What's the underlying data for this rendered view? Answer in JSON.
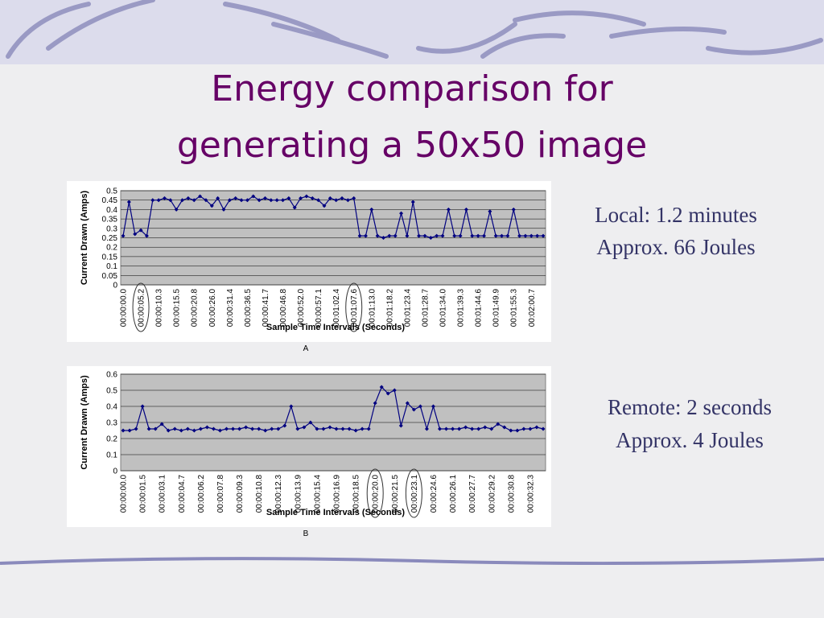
{
  "title": [
    "Energy comparison for",
    "generating a 50x50 image"
  ],
  "notes": [
    [
      "Local: 1.2 minutes",
      "Approx. 66 Joules"
    ],
    [
      "Remote: 2 seconds",
      "Approx. 4 Joules"
    ]
  ],
  "chart_data": [
    {
      "type": "line",
      "caption": "A",
      "x_label": "Sample Time Intervals (Seconds)",
      "y_label": "Current Drawn (Amps)",
      "ylim": [
        0,
        0.5
      ],
      "yticks": [
        0,
        0.05,
        0.1,
        0.15,
        0.2,
        0.25,
        0.3,
        0.35,
        0.4,
        0.45,
        0.5
      ],
      "grid": true,
      "categories": [
        "00:00:00.0",
        null,
        null,
        "00:00:05.2",
        null,
        null,
        "00:00:10.3",
        null,
        null,
        "00:00:15.5",
        null,
        null,
        "00:00:20.8",
        null,
        null,
        "00:00:26.0",
        null,
        null,
        "00:00:31.4",
        null,
        null,
        "00:00:36.5",
        null,
        null,
        "00:00:41.7",
        null,
        null,
        "00:00:46.8",
        null,
        null,
        "00:00:52.0",
        null,
        null,
        "00:00:57.1",
        null,
        null,
        "00:01:02.4",
        null,
        null,
        "00:01:07.6",
        null,
        null,
        "00:01:13.0",
        null,
        null,
        "00:01:18.2",
        null,
        null,
        "00:01:23.4",
        null,
        null,
        "00:01:28.7",
        null,
        null,
        "00:01:34.0",
        null,
        null,
        "00:01:39.3",
        null,
        null,
        "00:01:44.6",
        null,
        null,
        "00:01:49.9",
        null,
        null,
        "00:01:55.3",
        null,
        null,
        "00:02:00.7",
        null,
        null
      ],
      "series": [
        {
          "color": "#000080",
          "values": [
            0.26,
            0.44,
            0.27,
            0.29,
            0.26,
            0.45,
            0.45,
            0.46,
            0.45,
            0.4,
            0.45,
            0.46,
            0.45,
            0.47,
            0.45,
            0.42,
            0.46,
            0.4,
            0.45,
            0.46,
            0.45,
            0.45,
            0.47,
            0.45,
            0.46,
            0.45,
            0.45,
            0.45,
            0.46,
            0.41,
            0.46,
            0.47,
            0.46,
            0.45,
            0.42,
            0.46,
            0.45,
            0.46,
            0.45,
            0.46,
            0.26,
            0.26,
            0.4,
            0.26,
            0.25,
            0.26,
            0.26,
            0.38,
            0.26,
            0.44,
            0.26,
            0.26,
            0.25,
            0.26,
            0.26,
            0.4,
            0.26,
            0.26,
            0.4,
            0.26,
            0.26,
            0.26,
            0.39,
            0.26,
            0.26,
            0.26,
            0.4,
            0.26,
            0.26,
            0.26,
            0.26,
            0.26
          ]
        }
      ]
    },
    {
      "type": "line",
      "caption": "B",
      "x_label": "Sample Time Intervals (Seconds)",
      "y_label": "Current Drawn (Amps)",
      "ylim": [
        0,
        0.6
      ],
      "yticks": [
        0,
        0.1,
        0.2,
        0.3,
        0.4,
        0.5,
        0.6
      ],
      "grid": true,
      "categories": [
        "00:00:00.0",
        null,
        null,
        "00:00:01.5",
        null,
        null,
        "00:00:03.1",
        null,
        null,
        "00:00:04.7",
        null,
        null,
        "00:00:06.2",
        null,
        null,
        "00:00:07.8",
        null,
        null,
        "00:00:09.3",
        null,
        null,
        "00:00:10.8",
        null,
        null,
        "00:00:12.3",
        null,
        null,
        "00:00:13.9",
        null,
        null,
        "00:00:15.4",
        null,
        null,
        "00:00:16.9",
        null,
        null,
        "00:00:18.5",
        null,
        null,
        "00:00:20.0",
        null,
        null,
        "00:00:21.5",
        null,
        null,
        "00:00:23.1",
        null,
        null,
        "00:00:24.6",
        null,
        null,
        "00:00:26.1",
        null,
        null,
        "00:00:27.7",
        null,
        null,
        "00:00:29.2",
        null,
        null,
        "00:00:30.8",
        null,
        null,
        "00:00:32.3",
        null,
        null
      ],
      "series": [
        {
          "color": "#000080",
          "values": [
            0.25,
            0.25,
            0.26,
            0.4,
            0.26,
            0.26,
            0.29,
            0.25,
            0.26,
            0.25,
            0.26,
            0.25,
            0.26,
            0.27,
            0.26,
            0.25,
            0.26,
            0.26,
            0.26,
            0.27,
            0.26,
            0.26,
            0.25,
            0.26,
            0.26,
            0.28,
            0.4,
            0.26,
            0.27,
            0.3,
            0.26,
            0.26,
            0.27,
            0.26,
            0.26,
            0.26,
            0.25,
            0.26,
            0.26,
            0.42,
            0.52,
            0.48,
            0.5,
            0.28,
            0.42,
            0.38,
            0.4,
            0.26,
            0.4,
            0.26,
            0.26,
            0.26,
            0.26,
            0.27,
            0.26,
            0.26,
            0.27,
            0.26,
            0.29,
            0.27,
            0.25,
            0.25,
            0.26,
            0.26,
            0.27,
            0.26
          ]
        }
      ]
    }
  ]
}
